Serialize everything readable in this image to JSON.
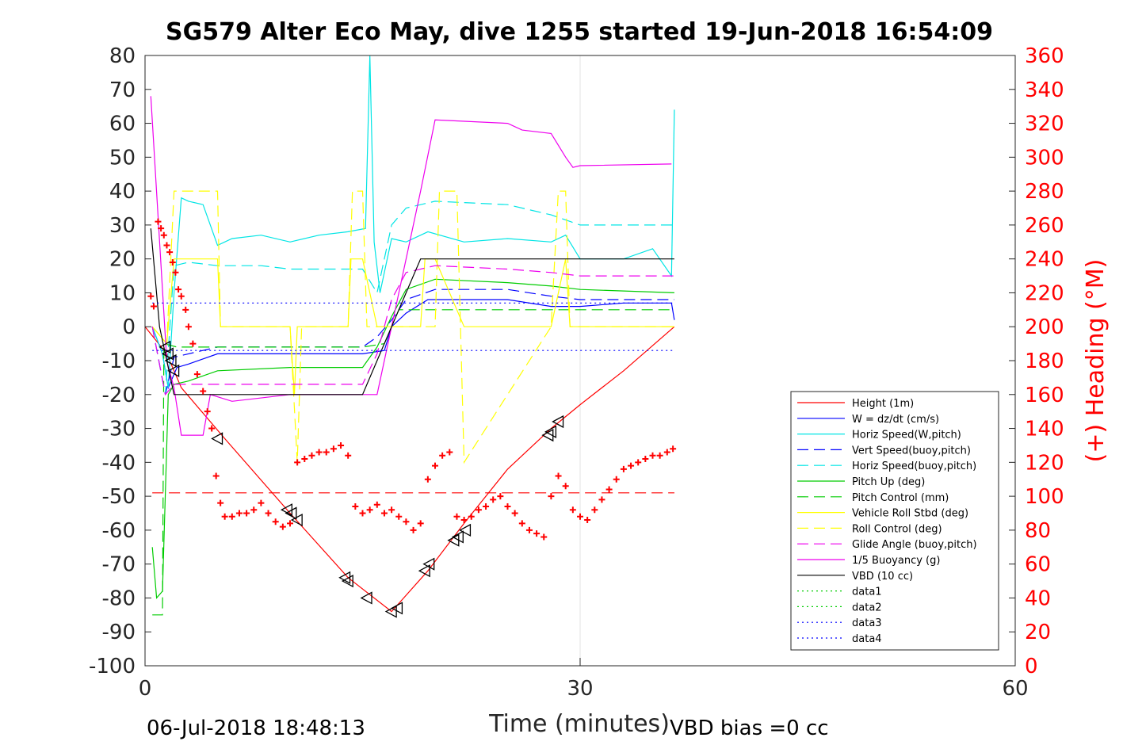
{
  "chart_data": {
    "type": "line",
    "title": "SG579 Alter Eco May, dive 1255 started 19-Jun-2018 16:54:09",
    "xlabel": "Time (minutes)",
    "ylabel_right": "(+) Heading (°M)",
    "xlim": [
      0,
      60
    ],
    "ylim": [
      -100,
      80
    ],
    "ylim_right": [
      0,
      360
    ],
    "xticks": [
      0,
      30,
      60
    ],
    "yticks": [
      80,
      70,
      60,
      50,
      40,
      30,
      20,
      10,
      0,
      -10,
      -20,
      -30,
      -40,
      -50,
      -60,
      -70,
      -80,
      -90,
      -100
    ],
    "yticks_right": [
      360,
      340,
      320,
      300,
      280,
      260,
      240,
      220,
      200,
      180,
      160,
      140,
      120,
      100,
      80,
      60,
      40,
      20,
      0
    ],
    "grid": "x only at 30",
    "legend_position": "lower-right",
    "footer_left": "06-Jul-2018 18:48:13",
    "footer_right": "VBD bias =0 cc",
    "series": [
      {
        "name": "Height (1m)",
        "color": "#ff0000",
        "style": "solid",
        "x": [
          0,
          1.5,
          2.5,
          5.5,
          10,
          14,
          17,
          19.5,
          22,
          25,
          28,
          30,
          33,
          36.5
        ],
        "y": [
          0,
          -8,
          -18,
          -33,
          -55,
          -74,
          -84,
          -72,
          -58,
          -42,
          -30,
          -23,
          -13,
          0
        ]
      },
      {
        "name": "W = dz/dt (cm/s)",
        "color": "#0000ff",
        "style": "solid",
        "x": [
          0.5,
          1.2,
          1.6,
          2.2,
          3,
          5,
          8,
          12,
          15,
          16.5,
          17,
          18,
          19.5,
          22,
          25,
          28,
          30,
          33,
          36.3,
          36.5
        ],
        "y": [
          0,
          -8,
          -18,
          -12,
          -11,
          -8,
          -8,
          -8,
          -8,
          -7,
          0,
          4,
          8,
          8,
          8,
          6,
          6,
          7,
          7,
          2
        ]
      },
      {
        "name": "Horiz Speed(W,pitch)",
        "color": "#00e5e5",
        "style": "solid",
        "x": [
          0.5,
          1.2,
          1.6,
          2,
          2.5,
          3,
          4,
          5,
          6,
          8,
          10,
          12,
          14,
          15.2,
          15.5,
          15.8,
          16.2,
          17,
          18,
          19.5,
          22,
          25,
          28,
          29,
          30,
          33,
          35,
          36.3,
          36.5
        ],
        "y": [
          0,
          -8,
          -18,
          10,
          38,
          37,
          36,
          24,
          26,
          27,
          25,
          27,
          28,
          29,
          80,
          25,
          10,
          26,
          25,
          28,
          25,
          26,
          25,
          27,
          20,
          20,
          23,
          15,
          64
        ]
      },
      {
        "name": "Vert Speed(buoy,pitch)",
        "color": "#0000ff",
        "style": "dash",
        "x": [
          0.5,
          1.4,
          2,
          3,
          5,
          10,
          15,
          16,
          17,
          18,
          20,
          25,
          28,
          30,
          36.5
        ],
        "y": [
          0,
          -20,
          -9,
          -8,
          -6,
          -6,
          -6,
          -3,
          2,
          8,
          11,
          11,
          9,
          8,
          8
        ]
      },
      {
        "name": "Horiz Speed(buoy,pitch)",
        "color": "#00e5e5",
        "style": "dash",
        "x": [
          0.5,
          1.4,
          2,
          3,
          5,
          8,
          10,
          15,
          16,
          17,
          18,
          20,
          25,
          28,
          30,
          36.5
        ],
        "y": [
          0,
          -20,
          18,
          19,
          18,
          18,
          17,
          17,
          10,
          30,
          35,
          37,
          36,
          33,
          30,
          30
        ]
      },
      {
        "name": "Pitch Up (deg)",
        "color": "#00cc00",
        "style": "solid",
        "x": [
          0.5,
          0.8,
          1.2,
          1.6,
          2,
          3,
          5,
          10,
          15,
          16,
          17,
          18,
          20,
          25,
          28,
          30,
          36.5
        ],
        "y": [
          -65,
          -80,
          -78,
          -20,
          -17,
          -16,
          -13,
          -12,
          -12,
          -6,
          3,
          11,
          14,
          13,
          12,
          11,
          10
        ]
      },
      {
        "name": "Pitch Control (mm)",
        "color": "#00cc00",
        "style": "dash",
        "x": [
          0.5,
          1.2,
          1.3,
          2.2,
          5,
          15,
          16.5,
          17.5,
          20,
          25,
          28,
          30,
          36.5
        ],
        "y": [
          -85,
          -85,
          -5,
          -6,
          -6,
          -6,
          -5,
          5,
          5,
          5,
          5,
          5,
          5
        ]
      },
      {
        "name": "Vehicle Roll Stbd (deg)",
        "color": "#ffff00",
        "style": "solid",
        "x": [
          0.5,
          1.5,
          2,
          3,
          5,
          5.2,
          10,
          10.3,
          10.5,
          14,
          14.2,
          15,
          16,
          17,
          18,
          19,
          19.3,
          20,
          22,
          25,
          28,
          29,
          29.3,
          36.5
        ],
        "y": [
          0,
          -5,
          20,
          20,
          20,
          0,
          0,
          -20,
          0,
          0,
          20,
          20,
          0,
          0,
          0,
          0,
          20,
          20,
          0,
          0,
          0,
          20,
          0,
          0
        ]
      },
      {
        "name": "Roll Control (deg)",
        "color": "#ffff00",
        "style": "dash",
        "x": [
          0.5,
          1.5,
          2,
          5,
          5.2,
          10,
          10.5,
          10.8,
          14,
          14.3,
          15,
          15.3,
          20,
          20.3,
          21.5,
          22,
          28,
          28.5,
          29,
          29.3,
          36.5
        ],
        "y": [
          0,
          -5,
          40,
          40,
          0,
          0,
          -40,
          0,
          0,
          40,
          40,
          0,
          0,
          40,
          40,
          -40,
          0,
          40,
          40,
          0,
          0
        ]
      },
      {
        "name": "Glide Angle (buoy,pitch)",
        "color": "#ee00ee",
        "style": "dash",
        "x": [
          0.5,
          1.4,
          2,
          3,
          5,
          10,
          15,
          16,
          17,
          18,
          20,
          25,
          28,
          30,
          36.5
        ],
        "y": [
          0,
          -20,
          -17,
          -17,
          -17,
          -17,
          -17,
          -8,
          8,
          16,
          18,
          17,
          16,
          15,
          15
        ]
      },
      {
        "name": "1/5 Buoyancy (g)",
        "color": "#ee00ee",
        "style": "solid",
        "x": [
          0.4,
          1.5,
          2,
          2.5,
          4,
          4.5,
          6,
          10,
          15,
          16,
          17,
          18,
          19,
          20,
          25,
          26,
          28,
          29,
          29.5,
          30,
          36.3
        ],
        "y": [
          68,
          -10,
          -18,
          -32,
          -32,
          -20,
          -22,
          -20,
          -20,
          -20,
          0,
          20,
          40,
          61,
          60,
          58,
          57,
          50,
          47,
          47.5,
          48
        ]
      },
      {
        "name": "VBD (10 cc)",
        "color": "#000000",
        "style": "solid",
        "x": [
          0.4,
          1,
          2,
          15,
          16,
          17,
          18,
          19,
          36.5
        ],
        "y": [
          29,
          0,
          -20,
          -20,
          -10,
          0,
          10,
          20,
          20
        ]
      },
      {
        "name": "data1",
        "color": "#00cc00",
        "style": "dot",
        "x": [],
        "y": []
      },
      {
        "name": "data2",
        "color": "#00cc00",
        "style": "dot",
        "x": [],
        "y": []
      },
      {
        "name": "data3",
        "color": "#0000ff",
        "style": "dot",
        "x": [
          0.5,
          36.5
        ],
        "y": [
          7,
          7
        ]
      },
      {
        "name": "data4",
        "color": "#0000ff",
        "style": "dot",
        "x": [
          0.5,
          36.5
        ],
        "y": [
          -7,
          -7
        ]
      }
    ],
    "reference_lines": [
      {
        "color": "#ff0000",
        "style": "dash",
        "axis": "right",
        "value": 102,
        "x_range": [
          0.5,
          36.5
        ]
      }
    ],
    "heading_points": {
      "color": "#ff0000",
      "marker": "+",
      "axis": "right",
      "x": [
        0.4,
        0.6,
        0.9,
        1.1,
        1.3,
        1.5,
        1.7,
        1.9,
        2.1,
        2.3,
        2.5,
        2.8,
        3,
        3.3,
        3.6,
        4,
        4.3,
        4.6,
        4.9,
        5.2,
        5.5,
        6,
        6.5,
        7,
        7.5,
        8,
        8.5,
        9,
        9.5,
        10,
        10.5,
        11,
        11.5,
        12,
        12.5,
        13,
        13.5,
        14,
        14.5,
        15,
        15.5,
        16,
        16.5,
        17,
        17.5,
        18,
        18.5,
        19,
        19.5,
        20,
        20.5,
        21,
        21.5,
        22,
        22.5,
        23,
        23.5,
        24,
        24.5,
        25,
        25.5,
        26,
        26.5,
        27,
        27.5,
        28,
        28.5,
        29,
        29.5,
        30,
        30.5,
        31,
        31.5,
        32,
        32.5,
        33,
        33.5,
        34,
        34.5,
        35,
        35.5,
        36,
        36.4
      ],
      "y": [
        218,
        212,
        262,
        258,
        254,
        248,
        244,
        238,
        232,
        222,
        218,
        210,
        200,
        190,
        172,
        162,
        150,
        140,
        112,
        96,
        88,
        88,
        90,
        90,
        92,
        96,
        90,
        85,
        82,
        84,
        120,
        122,
        124,
        126,
        126,
        128,
        130,
        124,
        94,
        90,
        92,
        95,
        90,
        92,
        88,
        85,
        80,
        84,
        110,
        118,
        124,
        126,
        88,
        86,
        88,
        92,
        94,
        98,
        100,
        94,
        90,
        84,
        80,
        78,
        76,
        100,
        112,
        106,
        92,
        88,
        86,
        92,
        98,
        104,
        110,
        116,
        118,
        120,
        122,
        124,
        124,
        126,
        128
      ]
    },
    "turn_markers": {
      "color": "#000000",
      "marker": "triangle",
      "x": [
        1.4,
        1.6,
        1.8,
        2,
        5,
        9.8,
        10.1,
        10.5,
        13.8,
        14,
        15.3,
        17,
        17.4,
        19.3,
        19.6,
        21.3,
        21.6,
        22.1,
        27.8,
        28,
        28.5
      ],
      "y": [
        -6,
        -8,
        -10,
        -13,
        -33,
        -54,
        -55,
        -57,
        -74,
        -75,
        -80,
        -84,
        -83,
        -72,
        -70,
        -63,
        -62,
        -60,
        -32,
        -31,
        -28
      ]
    }
  }
}
